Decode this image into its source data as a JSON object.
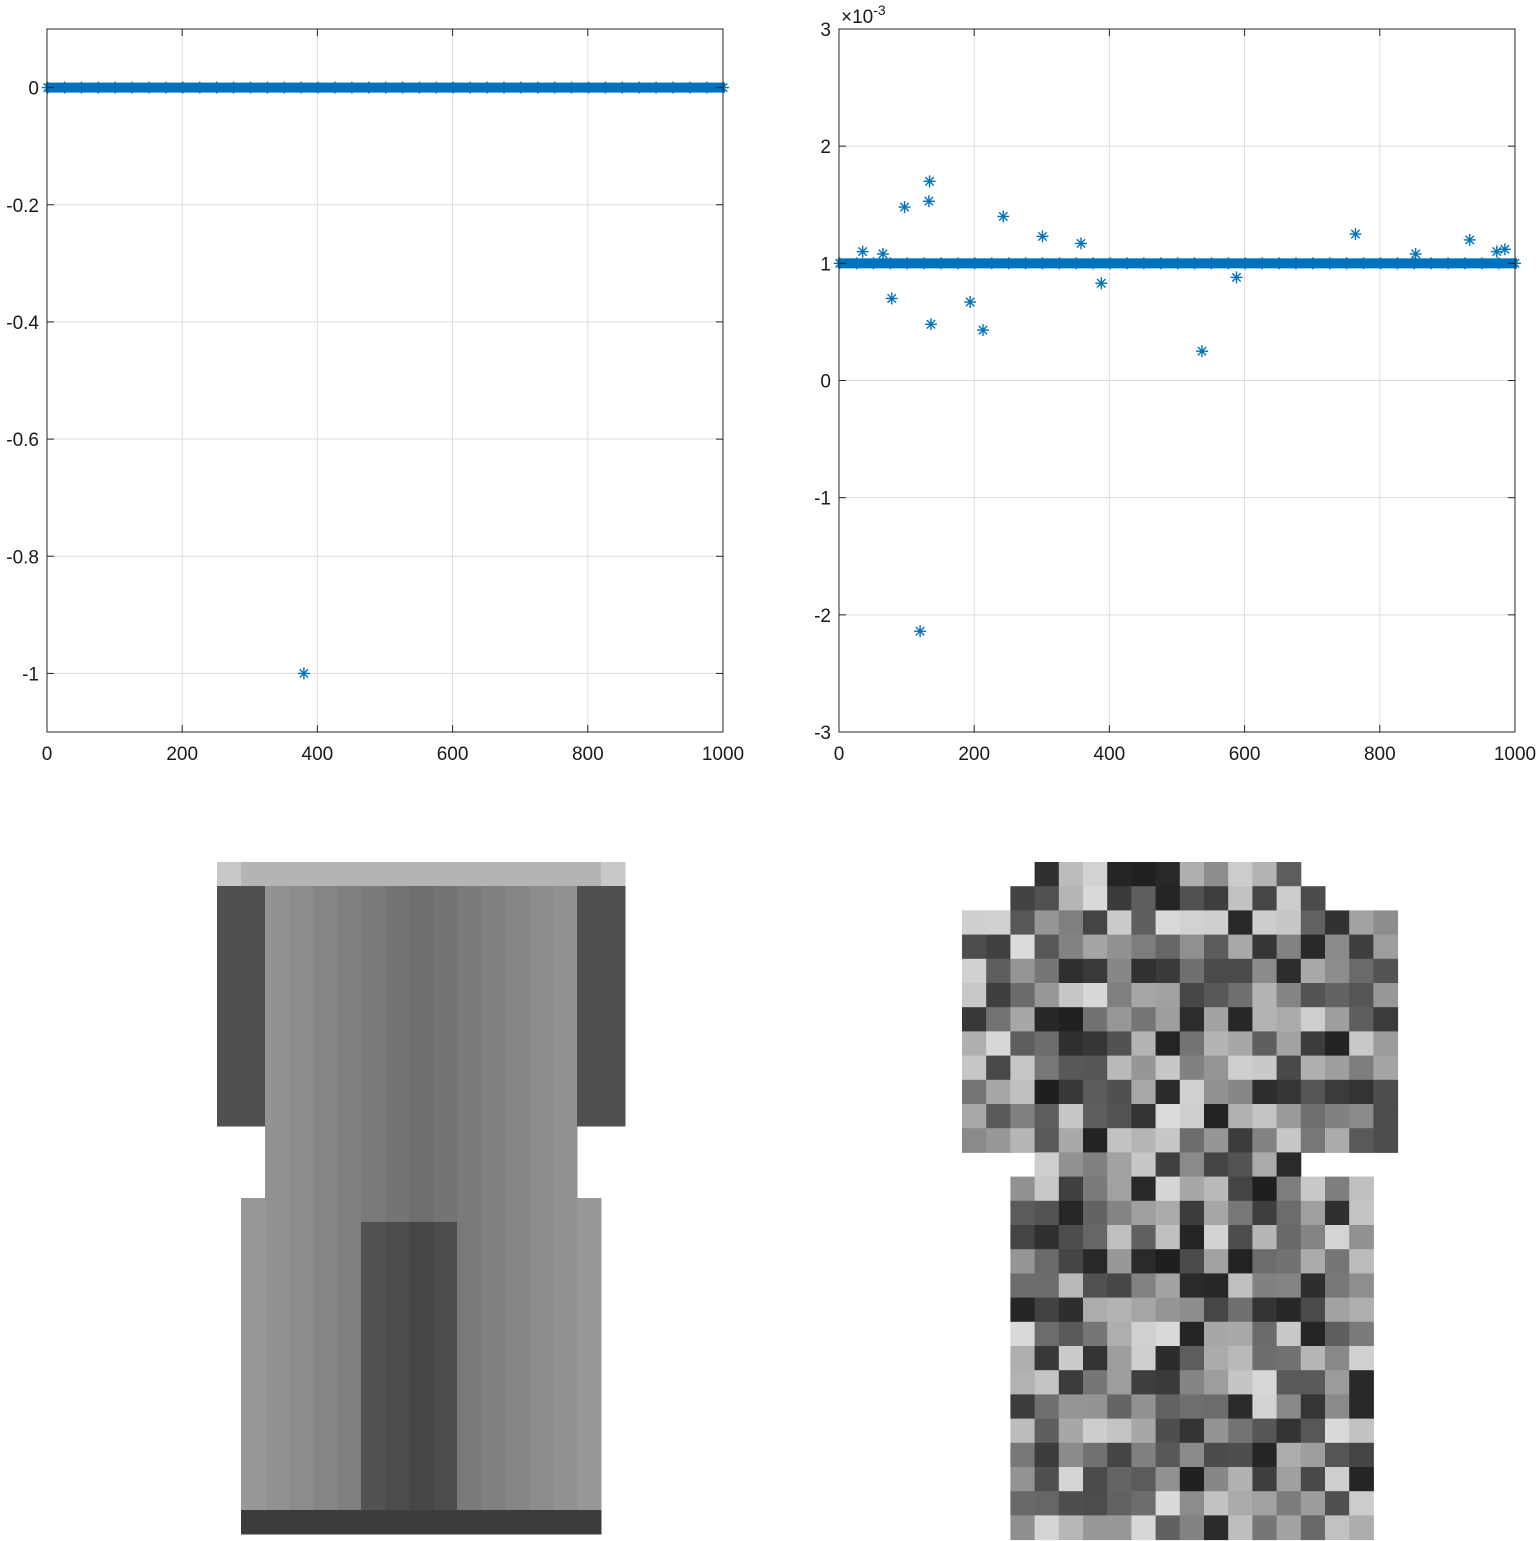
{
  "chart_data": [
    {
      "type": "scatter",
      "title": "",
      "xlabel": "",
      "ylabel": "",
      "xlim": [
        0,
        1000
      ],
      "ylim": [
        -1.1,
        0.1
      ],
      "xticks": [
        0,
        200,
        400,
        600,
        800,
        1000
      ],
      "xtick_labels": [
        "0",
        "200",
        "400",
        "600",
        "800",
        "1000"
      ],
      "yticks": [
        0,
        -0.2,
        -0.4,
        -0.6,
        -0.8,
        -1
      ],
      "ytick_labels": [
        "0",
        "-0.2",
        "-0.4",
        "-0.6",
        "-0.8",
        "-1"
      ],
      "grid": true,
      "marker": "asterisk",
      "color": "#0072bd",
      "baseline": {
        "x_start": 1,
        "x_end": 1000,
        "y": 0
      },
      "points": [
        {
          "x": 380,
          "y": -1
        }
      ]
    },
    {
      "type": "scatter",
      "title": "",
      "xlabel": "",
      "ylabel": "",
      "xlim": [
        0,
        1000
      ],
      "ylim": [
        -3,
        3
      ],
      "y_exponent_label": "×10",
      "y_exponent_power": "-3",
      "xticks": [
        0,
        200,
        400,
        600,
        800,
        1000
      ],
      "xtick_labels": [
        "0",
        "200",
        "400",
        "600",
        "800",
        "1000"
      ],
      "yticks": [
        3,
        2,
        1,
        0,
        -1,
        -2,
        -3
      ],
      "ytick_labels": [
        "3",
        "2",
        "1",
        "0",
        "-1",
        "-2",
        "-3"
      ],
      "grid": true,
      "marker": "asterisk",
      "color": "#0072bd",
      "baseline": {
        "x_start": 1,
        "x_end": 1000,
        "y": 1
      },
      "points": [
        {
          "x": 35,
          "y": 1.1
        },
        {
          "x": 65,
          "y": 1.08
        },
        {
          "x": 78,
          "y": 0.7
        },
        {
          "x": 97,
          "y": 1.48
        },
        {
          "x": 120,
          "y": -2.14
        },
        {
          "x": 133,
          "y": 1.53
        },
        {
          "x": 134,
          "y": 1.7
        },
        {
          "x": 136,
          "y": 0.48
        },
        {
          "x": 194,
          "y": 0.67
        },
        {
          "x": 213,
          "y": 0.43
        },
        {
          "x": 243,
          "y": 1.4
        },
        {
          "x": 301,
          "y": 1.23
        },
        {
          "x": 358,
          "y": 1.17
        },
        {
          "x": 388,
          "y": 0.83
        },
        {
          "x": 537,
          "y": 0.25
        },
        {
          "x": 588,
          "y": 0.88
        },
        {
          "x": 764,
          "y": 1.25
        },
        {
          "x": 853,
          "y": 1.08
        },
        {
          "x": 933,
          "y": 1.2
        },
        {
          "x": 973,
          "y": 1.1
        },
        {
          "x": 985,
          "y": 1.12
        }
      ]
    },
    {
      "type": "heatmap",
      "colormap": "gray",
      "rows": 28,
      "cols": 28,
      "values": [
        "...........................",
        "...........................",
        "...........................",
        "..... .......... ..........",
        "....."
      ]
    }
  ]
}
